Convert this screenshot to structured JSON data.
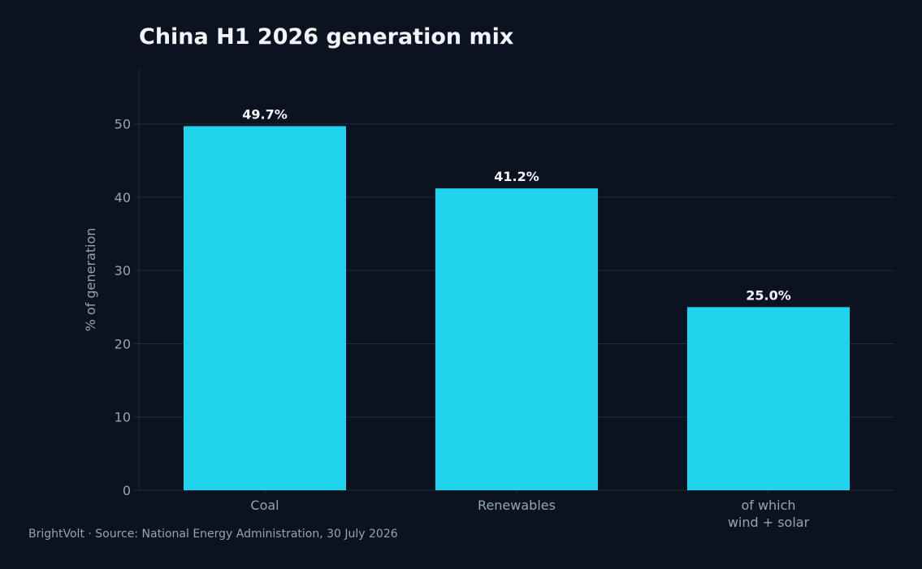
{
  "chart_data": {
    "type": "bar",
    "title": "China H1 2026 generation mix",
    "ylabel": "% of generation",
    "xlabel": "",
    "categories": [
      [
        "Coal"
      ],
      [
        "Renewables"
      ],
      [
        "of which",
        "wind + solar"
      ]
    ],
    "values": [
      49.7,
      41.2,
      25.0
    ],
    "data_labels": [
      "49.7%",
      "41.2%",
      "25.0%"
    ],
    "ylim": [
      0,
      57.5
    ],
    "yticks": [
      0,
      10,
      20,
      30,
      40,
      50
    ],
    "grid": true,
    "colors": {
      "bar": "#22d3ee",
      "background": "#0c1320",
      "grid": "#1e2b40",
      "text": "#94a3b8",
      "label": "#f1f5f9"
    }
  },
  "footer": {
    "source": "BrightVolt  ·  Source: National Energy Administration, 30 July 2026"
  }
}
